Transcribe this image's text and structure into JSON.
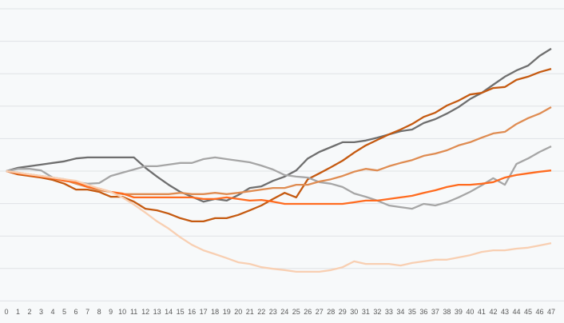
{
  "chart_data": {
    "type": "line",
    "title": "",
    "xlabel": "",
    "ylabel": "",
    "x": [
      0,
      1,
      2,
      3,
      4,
      5,
      6,
      7,
      8,
      9,
      10,
      11,
      12,
      13,
      14,
      15,
      16,
      17,
      18,
      19,
      20,
      21,
      22,
      23,
      24,
      25,
      26,
      27,
      28,
      29,
      30,
      31,
      32,
      33,
      34,
      35,
      36,
      37,
      38,
      39,
      40,
      41,
      42,
      43,
      44,
      45,
      46,
      47
    ],
    "ylim": [
      60,
      150
    ],
    "y_gridlines": [
      60,
      70,
      80,
      90,
      100,
      110,
      120,
      130,
      140,
      150
    ],
    "y_tick_labels_shown": false,
    "grid": true,
    "legend": "none",
    "series": [
      {
        "color": "#6f6f6f",
        "values": [
          100,
          101.0,
          101.5,
          102.0,
          102.5,
          103.0,
          103.9,
          104.2,
          104.2,
          104.2,
          104.2,
          104.2,
          101.0,
          98.3,
          95.8,
          93.6,
          92.1,
          90.6,
          91.4,
          90.9,
          92.6,
          94.8,
          95.3,
          97.0,
          98.3,
          100.2,
          103.9,
          105.9,
          107.4,
          108.9,
          108.9,
          109.4,
          110.3,
          111.3,
          112.3,
          112.8,
          114.8,
          116.0,
          117.7,
          119.7,
          122.2,
          124.1,
          126.6,
          129.1,
          131.0,
          132.5,
          135.5,
          137.7
        ]
      },
      {
        "color": "#c55a11",
        "values": [
          100,
          99.0,
          98.5,
          98.0,
          97.3,
          96.1,
          94.3,
          94.3,
          93.6,
          92.1,
          92.1,
          90.6,
          88.4,
          87.9,
          86.9,
          85.5,
          84.5,
          84.5,
          85.5,
          85.5,
          86.5,
          87.9,
          89.4,
          91.4,
          93.3,
          91.9,
          97.5,
          99.3,
          101.2,
          103.2,
          105.7,
          107.9,
          109.6,
          111.3,
          112.8,
          114.5,
          116.7,
          118.0,
          120.2,
          121.7,
          123.6,
          124.1,
          125.6,
          125.9,
          128.1,
          129.1,
          130.5,
          131.5
        ]
      },
      {
        "color": "#a6a6a6",
        "values": [
          100,
          100.7,
          100.7,
          100.2,
          98.0,
          97.5,
          96.6,
          96.1,
          96.3,
          98.5,
          99.5,
          100.5,
          101.5,
          101.5,
          102.0,
          102.5,
          102.5,
          103.7,
          104.2,
          103.7,
          103.2,
          102.7,
          101.7,
          100.5,
          98.8,
          98.3,
          98.0,
          96.6,
          96.1,
          95.1,
          93.1,
          92.1,
          90.9,
          89.4,
          88.9,
          88.4,
          89.9,
          89.4,
          90.4,
          91.9,
          93.6,
          95.6,
          97.8,
          95.8,
          102.2,
          103.9,
          105.9,
          107.6
        ]
      },
      {
        "color": "#df8c52",
        "values": [
          100,
          99.5,
          99.0,
          98.5,
          98.0,
          97.3,
          96.1,
          95.1,
          94.1,
          93.6,
          92.9,
          92.9,
          92.9,
          92.9,
          92.9,
          93.3,
          92.9,
          92.9,
          93.3,
          92.9,
          93.3,
          93.8,
          94.3,
          94.8,
          94.8,
          95.8,
          95.8,
          96.8,
          97.5,
          98.5,
          99.8,
          100.7,
          100.2,
          101.5,
          102.5,
          103.4,
          104.7,
          105.4,
          106.4,
          107.9,
          108.9,
          110.3,
          111.6,
          112.1,
          114.5,
          116.3,
          117.7,
          119.7
        ]
      },
      {
        "color": "#ff6b1f",
        "values": [
          100,
          99.3,
          98.8,
          98.3,
          97.8,
          97.0,
          96.6,
          95.1,
          94.6,
          93.6,
          93.1,
          91.9,
          91.9,
          91.9,
          91.9,
          91.9,
          91.9,
          91.4,
          91.4,
          91.9,
          91.4,
          90.9,
          91.1,
          90.6,
          89.9,
          89.9,
          89.9,
          89.9,
          89.9,
          89.9,
          90.4,
          90.9,
          90.9,
          91.4,
          91.9,
          92.4,
          93.3,
          94.1,
          95.1,
          95.8,
          95.8,
          96.1,
          96.6,
          98.0,
          98.8,
          99.3,
          99.8,
          100.2
        ]
      },
      {
        "color": "#f8cfb2",
        "values": [
          100,
          99.5,
          99.0,
          98.5,
          98.0,
          97.5,
          97.0,
          95.8,
          94.6,
          93.6,
          91.9,
          89.7,
          87.2,
          84.5,
          82.3,
          79.6,
          77.3,
          75.6,
          74.4,
          73.2,
          71.9,
          71.4,
          70.4,
          69.9,
          69.5,
          69.0,
          69.0,
          69.0,
          69.5,
          70.4,
          72.2,
          71.4,
          71.4,
          71.4,
          70.9,
          71.7,
          72.2,
          72.7,
          72.7,
          73.4,
          74.1,
          75.1,
          75.6,
          75.6,
          76.1,
          76.4,
          77.1,
          77.8
        ]
      }
    ]
  }
}
